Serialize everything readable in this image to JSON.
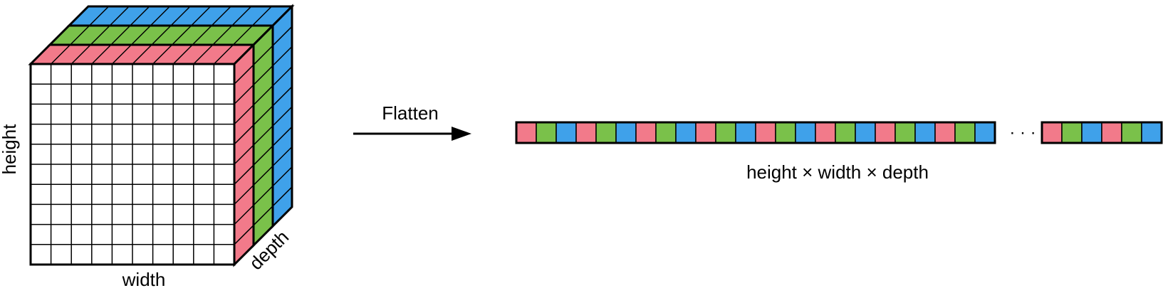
{
  "colors": {
    "red": "#F27A8A",
    "green": "#7AC14A",
    "blue": "#3FA1EA",
    "face": "#FFFFFF",
    "stroke": "#000000"
  },
  "cube": {
    "grid_rows": 10,
    "grid_cols": 10,
    "layer_order_back_to_front": [
      "blue",
      "green",
      "red"
    ],
    "labels": {
      "height": "height",
      "width": "width",
      "depth": "depth"
    }
  },
  "arrow": {
    "label": "Flatten"
  },
  "vector": {
    "pattern": [
      "red",
      "green",
      "blue"
    ],
    "left_cells": 24,
    "right_cells": 6,
    "ellipsis": "· · ·",
    "caption": "height × width × depth"
  }
}
